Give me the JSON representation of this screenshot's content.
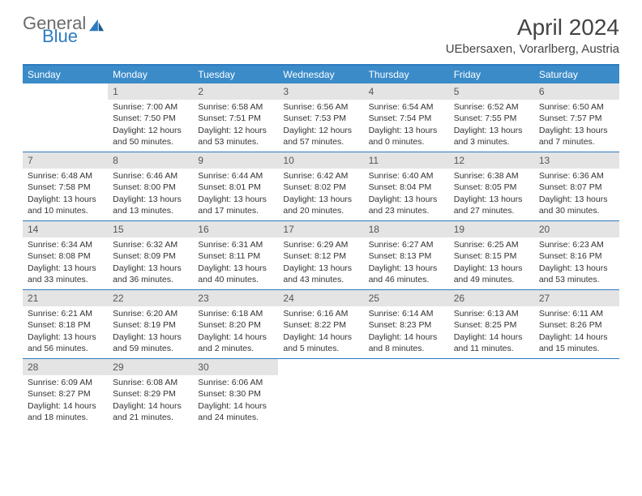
{
  "logo": {
    "part1": "General",
    "part2": "Blue"
  },
  "title": "April 2024",
  "location": "UEbersaxen, Vorarlberg, Austria",
  "colors": {
    "header_bg": "#3b8bc9",
    "border": "#2d7bc0",
    "daynum_bg": "#e4e4e4",
    "text": "#333333",
    "logo_gray": "#6b6b6b",
    "logo_blue": "#2d7bc0"
  },
  "day_labels": [
    "Sunday",
    "Monday",
    "Tuesday",
    "Wednesday",
    "Thursday",
    "Friday",
    "Saturday"
  ],
  "weeks": [
    [
      {
        "day": "",
        "lines": []
      },
      {
        "day": "1",
        "lines": [
          "Sunrise: 7:00 AM",
          "Sunset: 7:50 PM",
          "Daylight: 12 hours",
          "and 50 minutes."
        ]
      },
      {
        "day": "2",
        "lines": [
          "Sunrise: 6:58 AM",
          "Sunset: 7:51 PM",
          "Daylight: 12 hours",
          "and 53 minutes."
        ]
      },
      {
        "day": "3",
        "lines": [
          "Sunrise: 6:56 AM",
          "Sunset: 7:53 PM",
          "Daylight: 12 hours",
          "and 57 minutes."
        ]
      },
      {
        "day": "4",
        "lines": [
          "Sunrise: 6:54 AM",
          "Sunset: 7:54 PM",
          "Daylight: 13 hours",
          "and 0 minutes."
        ]
      },
      {
        "day": "5",
        "lines": [
          "Sunrise: 6:52 AM",
          "Sunset: 7:55 PM",
          "Daylight: 13 hours",
          "and 3 minutes."
        ]
      },
      {
        "day": "6",
        "lines": [
          "Sunrise: 6:50 AM",
          "Sunset: 7:57 PM",
          "Daylight: 13 hours",
          "and 7 minutes."
        ]
      }
    ],
    [
      {
        "day": "7",
        "lines": [
          "Sunrise: 6:48 AM",
          "Sunset: 7:58 PM",
          "Daylight: 13 hours",
          "and 10 minutes."
        ]
      },
      {
        "day": "8",
        "lines": [
          "Sunrise: 6:46 AM",
          "Sunset: 8:00 PM",
          "Daylight: 13 hours",
          "and 13 minutes."
        ]
      },
      {
        "day": "9",
        "lines": [
          "Sunrise: 6:44 AM",
          "Sunset: 8:01 PM",
          "Daylight: 13 hours",
          "and 17 minutes."
        ]
      },
      {
        "day": "10",
        "lines": [
          "Sunrise: 6:42 AM",
          "Sunset: 8:02 PM",
          "Daylight: 13 hours",
          "and 20 minutes."
        ]
      },
      {
        "day": "11",
        "lines": [
          "Sunrise: 6:40 AM",
          "Sunset: 8:04 PM",
          "Daylight: 13 hours",
          "and 23 minutes."
        ]
      },
      {
        "day": "12",
        "lines": [
          "Sunrise: 6:38 AM",
          "Sunset: 8:05 PM",
          "Daylight: 13 hours",
          "and 27 minutes."
        ]
      },
      {
        "day": "13",
        "lines": [
          "Sunrise: 6:36 AM",
          "Sunset: 8:07 PM",
          "Daylight: 13 hours",
          "and 30 minutes."
        ]
      }
    ],
    [
      {
        "day": "14",
        "lines": [
          "Sunrise: 6:34 AM",
          "Sunset: 8:08 PM",
          "Daylight: 13 hours",
          "and 33 minutes."
        ]
      },
      {
        "day": "15",
        "lines": [
          "Sunrise: 6:32 AM",
          "Sunset: 8:09 PM",
          "Daylight: 13 hours",
          "and 36 minutes."
        ]
      },
      {
        "day": "16",
        "lines": [
          "Sunrise: 6:31 AM",
          "Sunset: 8:11 PM",
          "Daylight: 13 hours",
          "and 40 minutes."
        ]
      },
      {
        "day": "17",
        "lines": [
          "Sunrise: 6:29 AM",
          "Sunset: 8:12 PM",
          "Daylight: 13 hours",
          "and 43 minutes."
        ]
      },
      {
        "day": "18",
        "lines": [
          "Sunrise: 6:27 AM",
          "Sunset: 8:13 PM",
          "Daylight: 13 hours",
          "and 46 minutes."
        ]
      },
      {
        "day": "19",
        "lines": [
          "Sunrise: 6:25 AM",
          "Sunset: 8:15 PM",
          "Daylight: 13 hours",
          "and 49 minutes."
        ]
      },
      {
        "day": "20",
        "lines": [
          "Sunrise: 6:23 AM",
          "Sunset: 8:16 PM",
          "Daylight: 13 hours",
          "and 53 minutes."
        ]
      }
    ],
    [
      {
        "day": "21",
        "lines": [
          "Sunrise: 6:21 AM",
          "Sunset: 8:18 PM",
          "Daylight: 13 hours",
          "and 56 minutes."
        ]
      },
      {
        "day": "22",
        "lines": [
          "Sunrise: 6:20 AM",
          "Sunset: 8:19 PM",
          "Daylight: 13 hours",
          "and 59 minutes."
        ]
      },
      {
        "day": "23",
        "lines": [
          "Sunrise: 6:18 AM",
          "Sunset: 8:20 PM",
          "Daylight: 14 hours",
          "and 2 minutes."
        ]
      },
      {
        "day": "24",
        "lines": [
          "Sunrise: 6:16 AM",
          "Sunset: 8:22 PM",
          "Daylight: 14 hours",
          "and 5 minutes."
        ]
      },
      {
        "day": "25",
        "lines": [
          "Sunrise: 6:14 AM",
          "Sunset: 8:23 PM",
          "Daylight: 14 hours",
          "and 8 minutes."
        ]
      },
      {
        "day": "26",
        "lines": [
          "Sunrise: 6:13 AM",
          "Sunset: 8:25 PM",
          "Daylight: 14 hours",
          "and 11 minutes."
        ]
      },
      {
        "day": "27",
        "lines": [
          "Sunrise: 6:11 AM",
          "Sunset: 8:26 PM",
          "Daylight: 14 hours",
          "and 15 minutes."
        ]
      }
    ],
    [
      {
        "day": "28",
        "lines": [
          "Sunrise: 6:09 AM",
          "Sunset: 8:27 PM",
          "Daylight: 14 hours",
          "and 18 minutes."
        ]
      },
      {
        "day": "29",
        "lines": [
          "Sunrise: 6:08 AM",
          "Sunset: 8:29 PM",
          "Daylight: 14 hours",
          "and 21 minutes."
        ]
      },
      {
        "day": "30",
        "lines": [
          "Sunrise: 6:06 AM",
          "Sunset: 8:30 PM",
          "Daylight: 14 hours",
          "and 24 minutes."
        ]
      },
      {
        "day": "",
        "lines": []
      },
      {
        "day": "",
        "lines": []
      },
      {
        "day": "",
        "lines": []
      },
      {
        "day": "",
        "lines": []
      }
    ]
  ]
}
